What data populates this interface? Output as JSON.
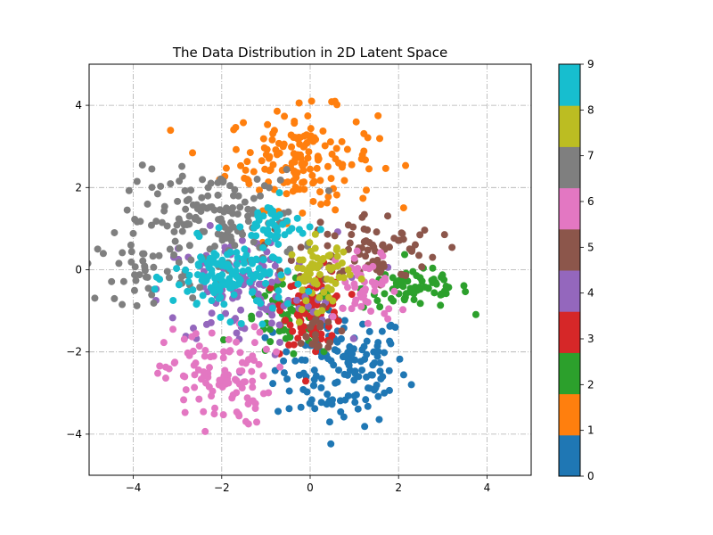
{
  "chart_data": {
    "type": "scatter",
    "title": "The Data Distribution in 2D Latent Space",
    "xlabel": "",
    "ylabel": "",
    "xlim": [
      -5,
      5
    ],
    "ylim": [
      -5,
      5
    ],
    "x_ticks": [
      -4,
      -2,
      0,
      2,
      4
    ],
    "y_ticks": [
      -4,
      -2,
      0,
      2,
      4
    ],
    "x_tick_labels": [
      "−4",
      "−2",
      "0",
      "2",
      "4"
    ],
    "y_tick_labels": [
      "−4",
      "−2",
      "0",
      "2",
      "4"
    ],
    "grid": true,
    "grid_style": "dashdot",
    "colorbar": {
      "range": [
        0,
        9
      ],
      "ticks": [
        0,
        1,
        2,
        3,
        4,
        5,
        6,
        7,
        8,
        9
      ],
      "tick_labels": [
        "0",
        "1",
        "2",
        "3",
        "4",
        "5",
        "6",
        "7",
        "8",
        "9"
      ],
      "colormap": "tab10",
      "colors": [
        "#1f77b4",
        "#ff7f0e",
        "#2ca02c",
        "#d62728",
        "#9467bd",
        "#8c564b",
        "#e377c2",
        "#7f7f7f",
        "#bcbd22",
        "#17becf"
      ]
    },
    "series": [
      {
        "label": 0,
        "color": "#1f77b4",
        "center": [
          0.7,
          -2.4
        ],
        "spread": [
          0.75,
          0.7
        ],
        "count": 150
      },
      {
        "label": 1,
        "color": "#ff7f0e",
        "center": [
          -0.2,
          2.7
        ],
        "spread": [
          0.85,
          0.6
        ],
        "count": 160
      },
      {
        "label": 2,
        "color": "#2ca02c",
        "center": [
          2.4,
          -0.45
        ],
        "spread": [
          0.6,
          0.25
        ],
        "count": 70
      },
      {
        "label": 2,
        "color": "#2ca02c",
        "center": [
          -0.5,
          -1.3
        ],
        "spread": [
          0.55,
          0.45
        ],
        "count": 60
      },
      {
        "label": 3,
        "color": "#d62728",
        "center": [
          0.1,
          -0.9
        ],
        "spread": [
          0.35,
          0.45
        ],
        "count": 90
      },
      {
        "label": 4,
        "color": "#9467bd",
        "center": [
          -1.4,
          -0.5
        ],
        "spread": [
          1.0,
          0.7
        ],
        "count": 130
      },
      {
        "label": 5,
        "color": "#8c564b",
        "center": [
          1.3,
          0.5
        ],
        "spread": [
          0.8,
          0.45
        ],
        "count": 80
      },
      {
        "label": 5,
        "color": "#8c564b",
        "center": [
          0.1,
          -1.6
        ],
        "spread": [
          0.3,
          0.3
        ],
        "count": 20
      },
      {
        "label": 6,
        "color": "#e377c2",
        "center": [
          -2.1,
          -2.6
        ],
        "spread": [
          0.6,
          0.6
        ],
        "count": 110
      },
      {
        "label": 6,
        "color": "#e377c2",
        "center": [
          1.3,
          -0.5
        ],
        "spread": [
          0.35,
          0.5
        ],
        "count": 50
      },
      {
        "label": 7,
        "color": "#7f7f7f",
        "center": [
          -2.2,
          1.2
        ],
        "spread": [
          1.0,
          0.6
        ],
        "count": 150
      },
      {
        "label": 7,
        "color": "#7f7f7f",
        "center": [
          -3.8,
          0.0
        ],
        "spread": [
          0.5,
          0.4
        ],
        "count": 40
      },
      {
        "label": 8,
        "color": "#bcbd22",
        "center": [
          0.2,
          -0.1
        ],
        "spread": [
          0.35,
          0.4
        ],
        "count": 70
      },
      {
        "label": 9,
        "color": "#17becf",
        "center": [
          -1.8,
          -0.2
        ],
        "spread": [
          0.65,
          0.45
        ],
        "count": 140
      },
      {
        "label": 9,
        "color": "#17becf",
        "center": [
          -0.8,
          1.1
        ],
        "spread": [
          0.35,
          0.3
        ],
        "count": 40
      }
    ]
  }
}
